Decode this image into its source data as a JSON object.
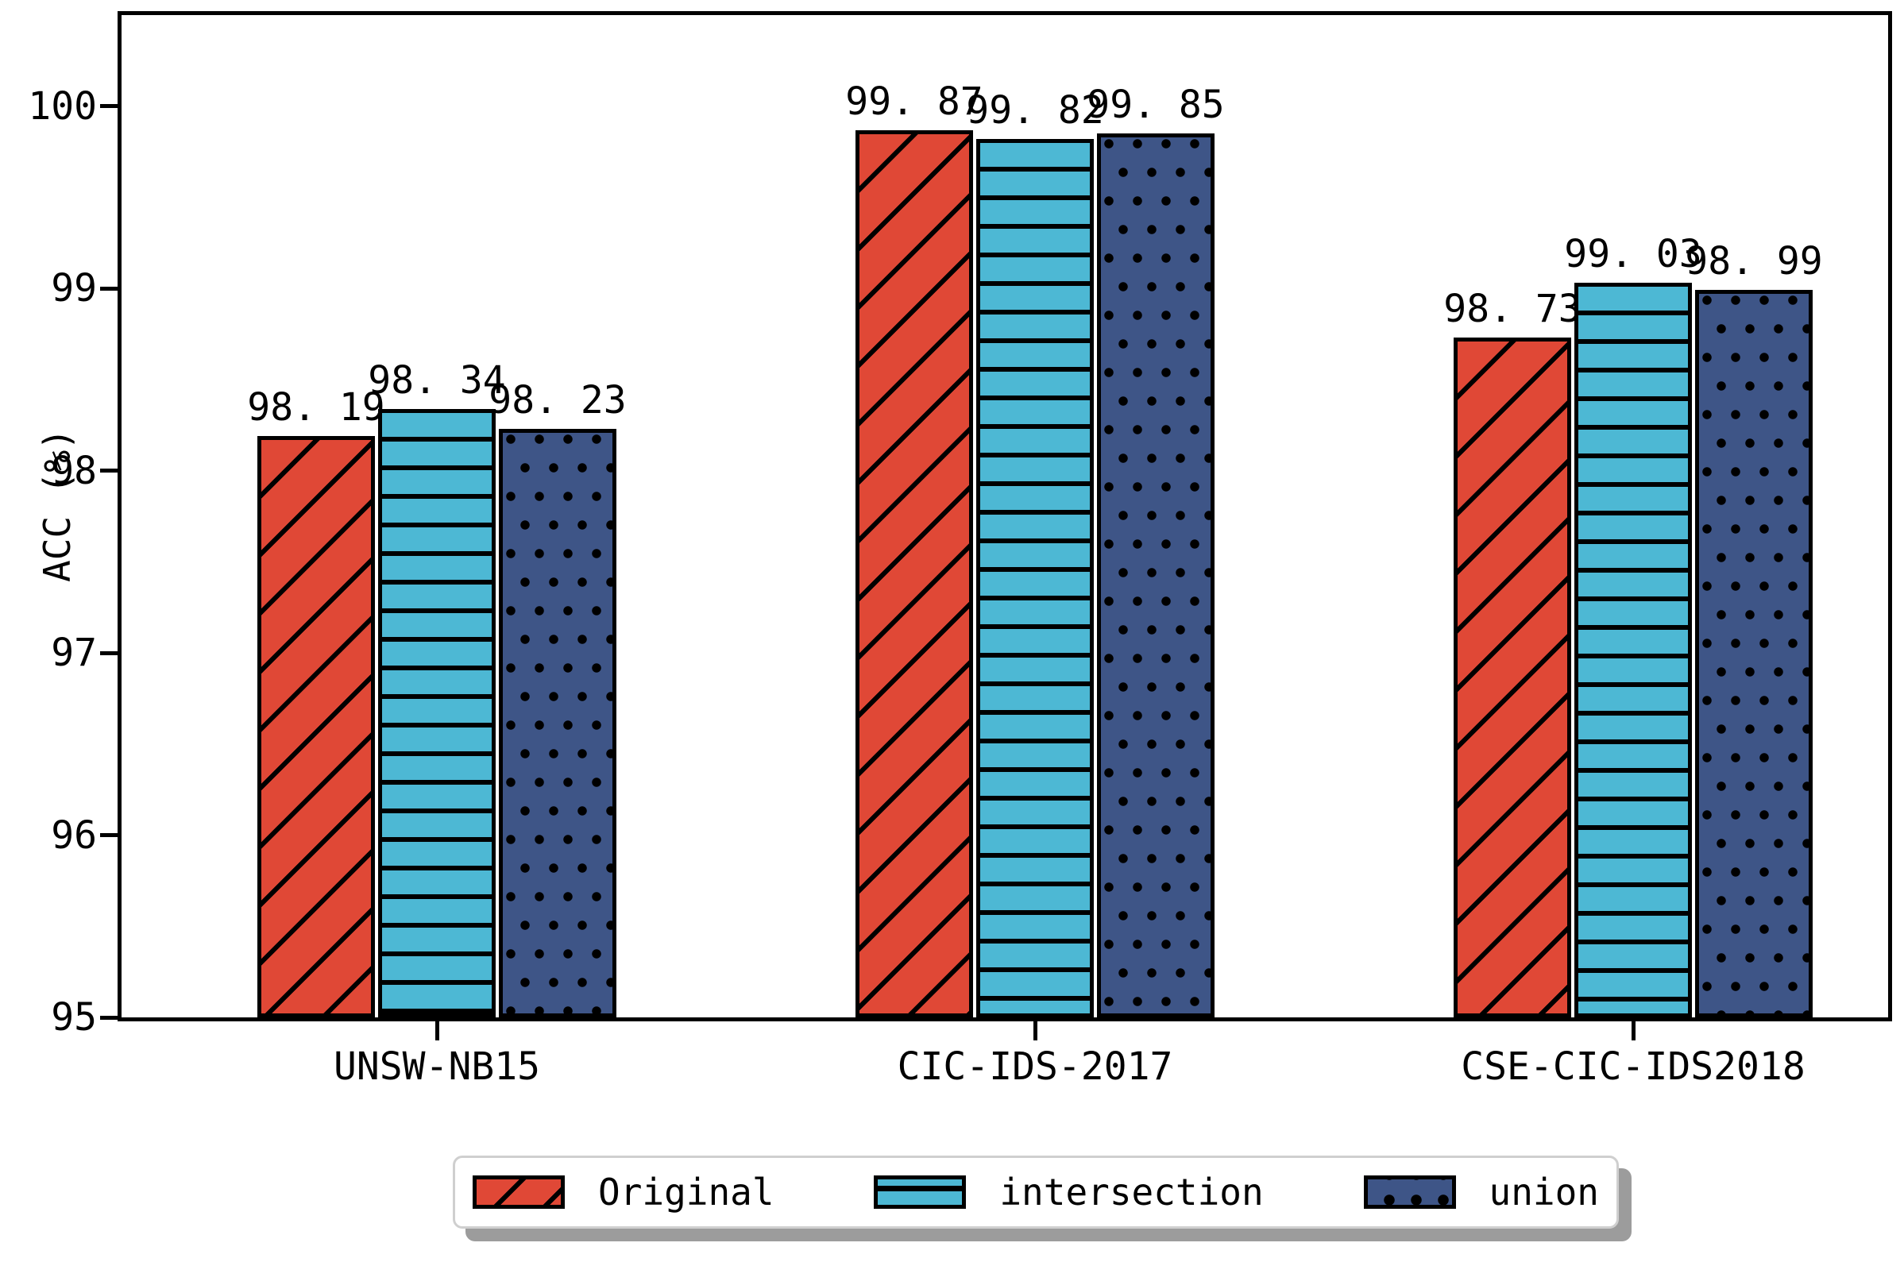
{
  "chart_data": {
    "type": "bar",
    "title": "",
    "xlabel": "",
    "ylabel": "ACC (%)",
    "categories": [
      "UNSW-NB15",
      "CIC-IDS-2017",
      "CSE-CIC-IDS2018"
    ],
    "series": [
      {
        "name": "Original",
        "values": [
          98.19,
          99.87,
          98.73
        ],
        "color": "#E04836",
        "hatch": "diagonal"
      },
      {
        "name": "intersection",
        "values": [
          98.34,
          99.82,
          99.03
        ],
        "color": "#4DB8D4",
        "hatch": "horizontal"
      },
      {
        "name": "union",
        "values": [
          98.23,
          99.85,
          98.99
        ],
        "color": "#3E5587",
        "hatch": "dots"
      }
    ],
    "bar_labels": [
      [
        "98. 19",
        "98. 34",
        "98. 23"
      ],
      [
        "99. 87",
        "99. 82",
        "99. 85"
      ],
      [
        "98. 73",
        "99. 03",
        "98. 99"
      ]
    ],
    "ylim": [
      95,
      100.5
    ],
    "yticks": [
      95,
      96,
      97,
      98,
      99,
      100
    ],
    "grid": false,
    "legend_position": "bottom",
    "colors": {
      "bar_edge": "#000000",
      "legend_shadow": "#9c9c9c",
      "legend_border": "#cfcfcf",
      "background": "#ffffff"
    }
  }
}
